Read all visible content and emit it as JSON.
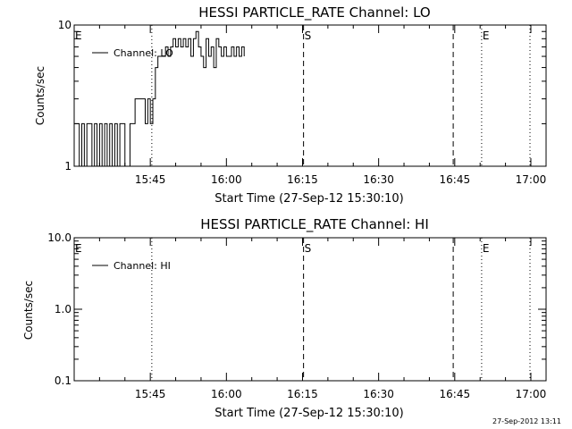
{
  "footer_timestamp": "27-Sep-2012 13:11",
  "chart_data": [
    {
      "type": "line",
      "title": "HESSI PARTICLE_RATE Channel: LO",
      "xlabel": "Start Time (27-Sep-12 15:30:10)",
      "ylabel": "Counts/sec",
      "x_unit": "minutes after 15:30:10",
      "xlim": [
        0,
        93
      ],
      "ylim": [
        1,
        10
      ],
      "yscale": "log",
      "x_ticks": [
        {
          "value": 15,
          "label": "15:45"
        },
        {
          "value": 30,
          "label": "16:00"
        },
        {
          "value": 45,
          "label": "16:15"
        },
        {
          "value": 60,
          "label": "16:30"
        },
        {
          "value": 75,
          "label": "16:45"
        },
        {
          "value": 90,
          "label": "17:00"
        }
      ],
      "y_ticks": [
        {
          "value": 1,
          "label": "1"
        },
        {
          "value": 10,
          "label": "10"
        }
      ],
      "legend": {
        "entries": [
          "Channel: LO"
        ],
        "placement": "top-left"
      },
      "markers": [
        {
          "x": 0,
          "style": "dotted",
          "label": "E"
        },
        {
          "x": 15.3,
          "style": "dotted",
          "label": ""
        },
        {
          "x": 45.2,
          "style": "dashed",
          "label": "S"
        },
        {
          "x": 74.7,
          "style": "dashed",
          "label": ""
        },
        {
          "x": 80.3,
          "style": "dotted",
          "label": "E"
        },
        {
          "x": 97.5,
          "style": "dotted",
          "label": ""
        }
      ],
      "series": [
        {
          "name": "Channel: LO",
          "x": [
            0,
            0.5,
            1,
            1.5,
            2,
            2.5,
            3,
            3.5,
            4,
            4.5,
            5,
            5.5,
            6,
            6.5,
            7,
            7.5,
            8,
            8.5,
            9,
            9.5,
            10,
            10.5,
            11,
            11.5,
            12,
            12.5,
            13,
            13.5,
            14,
            14.5,
            15,
            15.5,
            16,
            16.5,
            17,
            17.5,
            18,
            18.5,
            19,
            19.5,
            20,
            20.5,
            21,
            21.5,
            22,
            22.5,
            23,
            23.5,
            24,
            24.5,
            25,
            25.5,
            26,
            26.5,
            27,
            27.5,
            28,
            28.5,
            29,
            29.5,
            30,
            30.5,
            31,
            31.5,
            32,
            32.5,
            33,
            33.5
          ],
          "y": [
            2,
            2,
            1,
            2,
            1,
            2,
            2,
            1,
            2,
            1,
            2,
            1,
            2,
            1,
            2,
            1,
            2,
            1,
            2,
            2,
            1,
            1,
            2,
            2,
            3,
            3,
            3,
            3,
            2,
            3,
            2,
            3,
            5,
            6,
            6,
            6,
            7,
            6,
            7,
            8,
            7,
            8,
            7,
            8,
            7,
            8,
            6,
            8,
            9,
            7,
            6,
            5,
            8,
            6,
            7,
            5,
            8,
            7,
            6,
            7,
            6,
            6,
            7,
            6,
            7,
            6,
            7,
            6
          ]
        }
      ]
    },
    {
      "type": "line",
      "title": "HESSI PARTICLE_RATE Channel: HI",
      "xlabel": "Start Time (27-Sep-12 15:30:10)",
      "ylabel": "Counts/sec",
      "x_unit": "minutes after 15:30:10",
      "xlim": [
        0,
        93
      ],
      "ylim": [
        0.1,
        10
      ],
      "yscale": "log",
      "x_ticks": [
        {
          "value": 15,
          "label": "15:45"
        },
        {
          "value": 30,
          "label": "16:00"
        },
        {
          "value": 45,
          "label": "16:15"
        },
        {
          "value": 60,
          "label": "16:30"
        },
        {
          "value": 75,
          "label": "16:45"
        },
        {
          "value": 90,
          "label": "17:00"
        }
      ],
      "y_ticks": [
        {
          "value": 0.1,
          "label": "0.1"
        },
        {
          "value": 1,
          "label": "1.0"
        },
        {
          "value": 10,
          "label": "10.0"
        }
      ],
      "legend": {
        "entries": [
          "Channel: HI"
        ],
        "placement": "top-left"
      },
      "markers": [
        {
          "x": 0,
          "style": "dotted",
          "label": "E"
        },
        {
          "x": 15.3,
          "style": "dotted",
          "label": ""
        },
        {
          "x": 45.2,
          "style": "dashed",
          "label": "S"
        },
        {
          "x": 74.7,
          "style": "dashed",
          "label": ""
        },
        {
          "x": 80.3,
          "style": "dotted",
          "label": "E"
        },
        {
          "x": 97.5,
          "style": "dotted",
          "label": ""
        }
      ],
      "series": [
        {
          "name": "Channel: HI",
          "x": [],
          "y": []
        }
      ]
    }
  ]
}
